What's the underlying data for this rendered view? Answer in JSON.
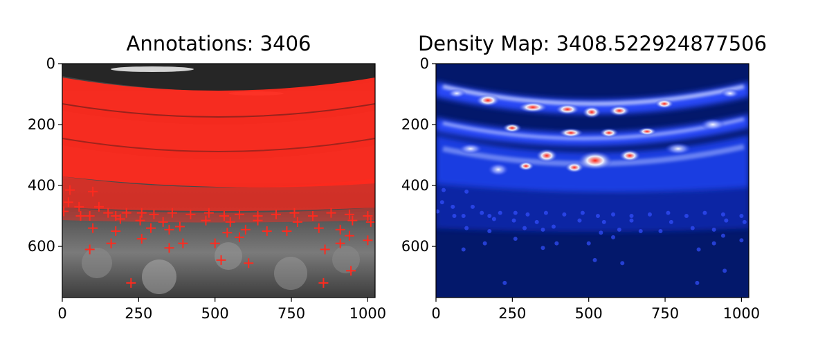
{
  "chart_data": [
    {
      "type": "heatmap",
      "title": "Annotations: 3406",
      "image": "grayscale crowd photo with red plus-sign annotation markers",
      "marker_color": "#ff2a1e",
      "xlim": [
        0,
        1024
      ],
      "ylim": [
        768,
        0
      ],
      "xticks": [
        0,
        250,
        500,
        750,
        1000
      ],
      "yticks": [
        0,
        200,
        400,
        600
      ],
      "sample_annotation_markers": [
        {
          "x": 25,
          "y": 415
        },
        {
          "x": 100,
          "y": 420
        },
        {
          "x": 20,
          "y": 455
        },
        {
          "x": 55,
          "y": 470
        },
        {
          "x": 120,
          "y": 470
        },
        {
          "x": 5,
          "y": 485
        },
        {
          "x": 60,
          "y": 500
        },
        {
          "x": 90,
          "y": 500
        },
        {
          "x": 150,
          "y": 490
        },
        {
          "x": 175,
          "y": 500
        },
        {
          "x": 210,
          "y": 490
        },
        {
          "x": 260,
          "y": 490
        },
        {
          "x": 300,
          "y": 495
        },
        {
          "x": 360,
          "y": 490
        },
        {
          "x": 420,
          "y": 495
        },
        {
          "x": 480,
          "y": 490
        },
        {
          "x": 530,
          "y": 500
        },
        {
          "x": 580,
          "y": 495
        },
        {
          "x": 640,
          "y": 500
        },
        {
          "x": 700,
          "y": 495
        },
        {
          "x": 760,
          "y": 490
        },
        {
          "x": 820,
          "y": 500
        },
        {
          "x": 880,
          "y": 490
        },
        {
          "x": 940,
          "y": 495
        },
        {
          "x": 1000,
          "y": 500
        },
        {
          "x": 190,
          "y": 510
        },
        {
          "x": 255,
          "y": 515
        },
        {
          "x": 330,
          "y": 520
        },
        {
          "x": 470,
          "y": 515
        },
        {
          "x": 550,
          "y": 520
        },
        {
          "x": 640,
          "y": 515
        },
        {
          "x": 770,
          "y": 520
        },
        {
          "x": 950,
          "y": 515
        },
        {
          "x": 1010,
          "y": 520
        },
        {
          "x": 100,
          "y": 540
        },
        {
          "x": 175,
          "y": 550
        },
        {
          "x": 290,
          "y": 540
        },
        {
          "x": 350,
          "y": 545
        },
        {
          "x": 385,
          "y": 535
        },
        {
          "x": 540,
          "y": 555
        },
        {
          "x": 600,
          "y": 545
        },
        {
          "x": 670,
          "y": 550
        },
        {
          "x": 735,
          "y": 550
        },
        {
          "x": 840,
          "y": 540
        },
        {
          "x": 910,
          "y": 545
        },
        {
          "x": 260,
          "y": 575
        },
        {
          "x": 580,
          "y": 570
        },
        {
          "x": 940,
          "y": 565
        },
        {
          "x": 160,
          "y": 590
        },
        {
          "x": 395,
          "y": 590
        },
        {
          "x": 500,
          "y": 590
        },
        {
          "x": 910,
          "y": 590
        },
        {
          "x": 1000,
          "y": 580
        },
        {
          "x": 90,
          "y": 610
        },
        {
          "x": 350,
          "y": 605
        },
        {
          "x": 860,
          "y": 610
        },
        {
          "x": 520,
          "y": 645
        },
        {
          "x": 610,
          "y": 655
        },
        {
          "x": 945,
          "y": 680
        },
        {
          "x": 225,
          "y": 720
        },
        {
          "x": 855,
          "y": 720
        }
      ]
    },
    {
      "type": "heatmap",
      "title": "Density Map: 3408.522924877506",
      "image": "density map rendered with dark-blue to white to red colormap",
      "colormap": [
        "#001f6b",
        "#0a2fd8",
        "#ffffff",
        "#e01010"
      ],
      "xlim": [
        0,
        1024
      ],
      "ylim": [
        768,
        0
      ],
      "xticks": [
        0,
        250,
        500,
        750,
        1000
      ],
      "yticks": [
        0,
        200,
        400,
        600
      ]
    }
  ]
}
